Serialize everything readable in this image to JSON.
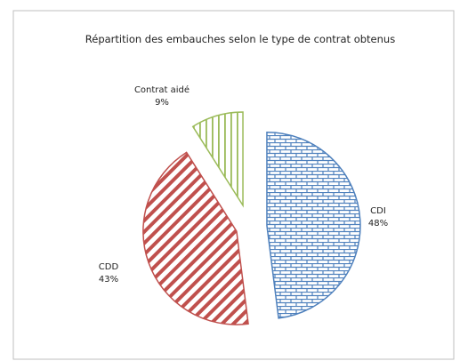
{
  "chart_data": {
    "type": "pie",
    "title": "Répartition des embauches selon le type de contrat obtenus",
    "categories": [
      "CDI",
      "CDD",
      "Contrat aidé"
    ],
    "values": [
      48,
      43,
      9
    ],
    "value_labels": [
      "48%",
      "43%",
      "9%"
    ],
    "colors": [
      "#4f81bd",
      "#c0504d",
      "#9bbb59"
    ]
  }
}
